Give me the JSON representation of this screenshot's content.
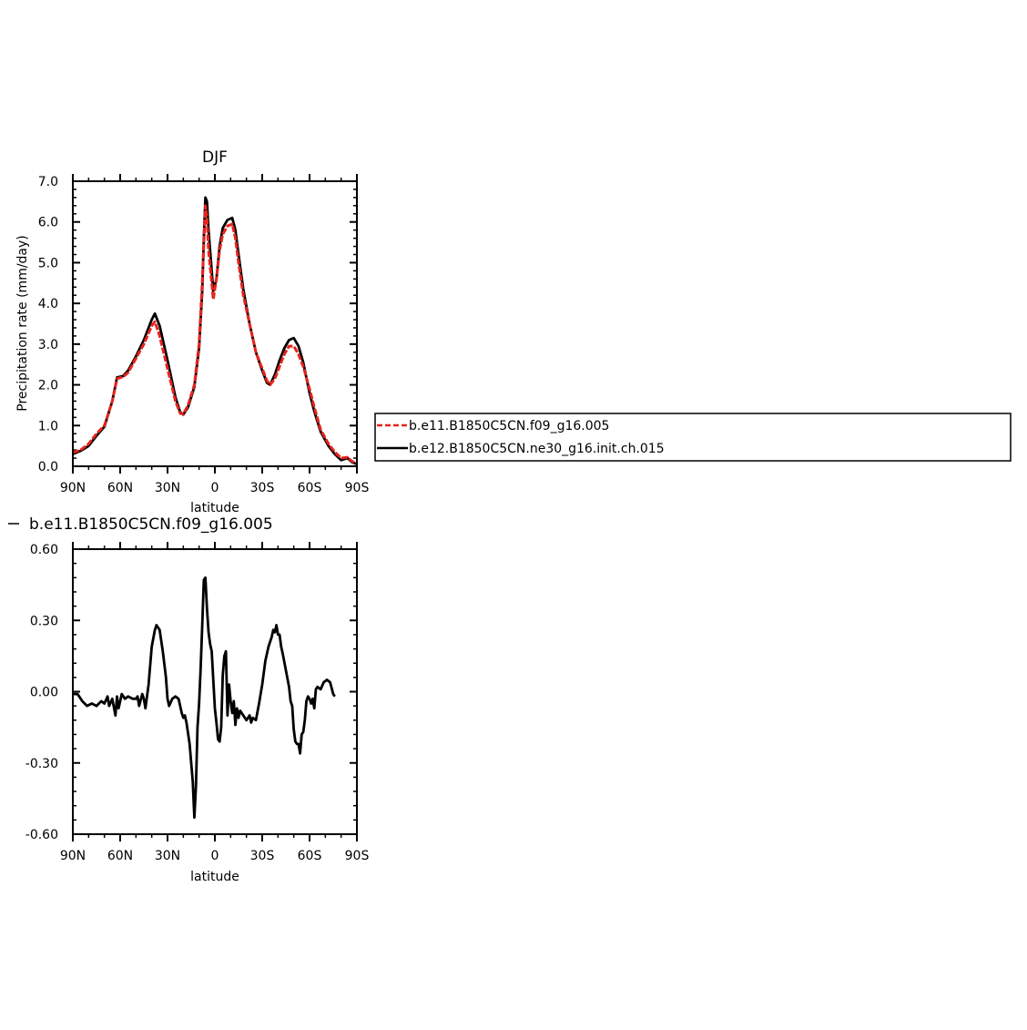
{
  "chart_data": [
    {
      "type": "line",
      "title": "DJF",
      "xlabel": "latitude",
      "ylabel": "Precipitation rate (mm/day)",
      "xlim": [
        90,
        -90
      ],
      "ylim": [
        0,
        7
      ],
      "x_ticks": [
        90,
        60,
        30,
        0,
        -30,
        -60,
        -90
      ],
      "x_tick_labels": [
        "90N",
        "60N",
        "30N",
        "0",
        "30S",
        "60S",
        "90S"
      ],
      "y_ticks": [
        0,
        1,
        2,
        3,
        4,
        5,
        6,
        7
      ],
      "y_tick_labels": [
        "0.0",
        "1.0",
        "2.0",
        "3.0",
        "4.0",
        "5.0",
        "6.0",
        "7.0"
      ],
      "grid": false,
      "legend": "right",
      "series": [
        {
          "name": "b.e11.B1850C5CN.f09_g16.005",
          "color": "#e8231c",
          "dash": true,
          "points": [
            [
              90,
              0.34
            ],
            [
              85,
              0.4
            ],
            [
              80,
              0.55
            ],
            [
              75,
              0.8
            ],
            [
              70,
              1.0
            ],
            [
              65,
              1.6
            ],
            [
              62,
              2.15
            ],
            [
              58,
              2.2
            ],
            [
              55,
              2.3
            ],
            [
              50,
              2.65
            ],
            [
              45,
              3.0
            ],
            [
              40,
              3.45
            ],
            [
              38,
              3.55
            ],
            [
              35,
              3.2
            ],
            [
              30,
              2.4
            ],
            [
              25,
              1.6
            ],
            [
              22,
              1.3
            ],
            [
              20,
              1.28
            ],
            [
              17,
              1.5
            ],
            [
              13,
              2.0
            ],
            [
              10,
              3.0
            ],
            [
              8,
              4.5
            ],
            [
              6,
              6.4
            ],
            [
              5,
              6.1
            ],
            [
              4,
              5.3
            ],
            [
              2,
              4.5
            ],
            [
              1,
              4.1
            ],
            [
              -1,
              4.6
            ],
            [
              -3,
              5.3
            ],
            [
              -5,
              5.7
            ],
            [
              -8,
              5.9
            ],
            [
              -11,
              5.95
            ],
            [
              -13,
              5.6
            ],
            [
              -15,
              5.0
            ],
            [
              -18,
              4.2
            ],
            [
              -22,
              3.5
            ],
            [
              -26,
              2.8
            ],
            [
              -30,
              2.4
            ],
            [
              -33,
              2.1
            ],
            [
              -35,
              2.0
            ],
            [
              -38,
              2.15
            ],
            [
              -41,
              2.45
            ],
            [
              -44,
              2.75
            ],
            [
              -47,
              2.95
            ],
            [
              -50,
              2.95
            ],
            [
              -53,
              2.75
            ],
            [
              -56,
              2.45
            ],
            [
              -60,
              1.9
            ],
            [
              -63,
              1.45
            ],
            [
              -67,
              0.9
            ],
            [
              -72,
              0.55
            ],
            [
              -76,
              0.35
            ],
            [
              -80,
              0.2
            ],
            [
              -84,
              0.22
            ],
            [
              -87,
              0.12
            ],
            [
              -90,
              0.06
            ]
          ]
        },
        {
          "name": "b.e12.B1850C5CN.ne30_g16.init.ch.015",
          "color": "#000000",
          "dash": false,
          "points": [
            [
              90,
              0.3
            ],
            [
              85,
              0.38
            ],
            [
              80,
              0.5
            ],
            [
              75,
              0.75
            ],
            [
              70,
              0.97
            ],
            [
              65,
              1.6
            ],
            [
              62,
              2.18
            ],
            [
              58,
              2.22
            ],
            [
              55,
              2.35
            ],
            [
              50,
              2.7
            ],
            [
              45,
              3.1
            ],
            [
              40,
              3.6
            ],
            [
              38,
              3.75
            ],
            [
              35,
              3.45
            ],
            [
              30,
              2.6
            ],
            [
              25,
              1.7
            ],
            [
              22,
              1.33
            ],
            [
              20,
              1.27
            ],
            [
              17,
              1.45
            ],
            [
              13,
              1.95
            ],
            [
              10,
              2.9
            ],
            [
              8,
              4.3
            ],
            [
              7,
              5.6
            ],
            [
              6,
              6.6
            ],
            [
              5,
              6.5
            ],
            [
              4,
              5.8
            ],
            [
              2,
              4.8
            ],
            [
              1,
              4.3
            ],
            [
              -1,
              4.6
            ],
            [
              -3,
              5.4
            ],
            [
              -5,
              5.85
            ],
            [
              -8,
              6.05
            ],
            [
              -11,
              6.1
            ],
            [
              -13,
              5.8
            ],
            [
              -15,
              5.2
            ],
            [
              -18,
              4.35
            ],
            [
              -22,
              3.5
            ],
            [
              -26,
              2.8
            ],
            [
              -30,
              2.35
            ],
            [
              -33,
              2.05
            ],
            [
              -35,
              2.0
            ],
            [
              -38,
              2.25
            ],
            [
              -41,
              2.6
            ],
            [
              -44,
              2.9
            ],
            [
              -47,
              3.1
            ],
            [
              -50,
              3.15
            ],
            [
              -53,
              2.95
            ],
            [
              -56,
              2.55
            ],
            [
              -60,
              1.8
            ],
            [
              -63,
              1.35
            ],
            [
              -67,
              0.85
            ],
            [
              -72,
              0.5
            ],
            [
              -76,
              0.3
            ],
            [
              -80,
              0.15
            ],
            [
              -84,
              0.2
            ],
            [
              -87,
              0.1
            ],
            [
              -90,
              0.05
            ]
          ]
        }
      ]
    },
    {
      "type": "line",
      "title": "b.e11.B1850C5CN.f09_g16.005",
      "xlabel": "latitude",
      "ylabel": "Precipitation rate (mm/day)",
      "xlim": [
        90,
        -90
      ],
      "ylim": [
        -0.6,
        0.6
      ],
      "x_ticks": [
        90,
        60,
        30,
        0,
        -30,
        -60,
        -90
      ],
      "x_tick_labels": [
        "90N",
        "60N",
        "30N",
        "0",
        "30S",
        "60S",
        "90S"
      ],
      "y_ticks": [
        -0.6,
        -0.3,
        0.0,
        0.3,
        0.6
      ],
      "y_tick_labels": [
        "-0.60",
        "-0.30",
        "0.00",
        "0.30",
        "0.60"
      ],
      "grid": false,
      "series": [
        {
          "color": "#000000",
          "dash": false,
          "points": [
            [
              90,
              -0.01
            ],
            [
              87,
              -0.01
            ],
            [
              84,
              -0.04
            ],
            [
              81,
              -0.06
            ],
            [
              78,
              -0.05
            ],
            [
              75,
              -0.06
            ],
            [
              72,
              -0.04
            ],
            [
              70,
              -0.05
            ],
            [
              68,
              -0.02
            ],
            [
              67,
              -0.06
            ],
            [
              65,
              -0.03
            ],
            [
              63,
              -0.1
            ],
            [
              62,
              -0.02
            ],
            [
              61,
              -0.07
            ],
            [
              59,
              -0.01
            ],
            [
              57,
              -0.03
            ],
            [
              55,
              -0.02
            ],
            [
              52,
              -0.03
            ],
            [
              50,
              -0.03
            ],
            [
              49,
              -0.02
            ],
            [
              48,
              -0.06
            ],
            [
              46,
              -0.01
            ],
            [
              45,
              -0.03
            ],
            [
              44,
              -0.07
            ],
            [
              42,
              0.03
            ],
            [
              40,
              0.19
            ],
            [
              38,
              0.26
            ],
            [
              37,
              0.28
            ],
            [
              35,
              0.26
            ],
            [
              33,
              0.17
            ],
            [
              31,
              0.06
            ],
            [
              30,
              -0.03
            ],
            [
              29,
              -0.06
            ],
            [
              27,
              -0.03
            ],
            [
              25,
              -0.02
            ],
            [
              23,
              -0.03
            ],
            [
              21,
              -0.09
            ],
            [
              20,
              -0.11
            ],
            [
              19,
              -0.1
            ],
            [
              18,
              -0.13
            ],
            [
              16,
              -0.22
            ],
            [
              14,
              -0.38
            ],
            [
              13,
              -0.53
            ],
            [
              12,
              -0.4
            ],
            [
              11,
              -0.15
            ],
            [
              10,
              -0.05
            ],
            [
              9,
              0.1
            ],
            [
              8,
              0.28
            ],
            [
              7,
              0.47
            ],
            [
              6,
              0.48
            ],
            [
              5,
              0.35
            ],
            [
              4,
              0.25
            ],
            [
              3,
              0.2
            ],
            [
              2,
              0.17
            ],
            [
              1,
              0.05
            ],
            [
              0,
              -0.07
            ],
            [
              -1,
              -0.13
            ],
            [
              -2,
              -0.2
            ],
            [
              -3,
              -0.21
            ],
            [
              -4,
              -0.15
            ],
            [
              -5,
              0.07
            ],
            [
              -6,
              0.15
            ],
            [
              -7,
              0.17
            ],
            [
              -8,
              -0.1
            ],
            [
              -9,
              0.03
            ],
            [
              -10,
              -0.04
            ],
            [
              -11,
              -0.09
            ],
            [
              -12,
              -0.04
            ],
            [
              -13,
              -0.14
            ],
            [
              -14,
              -0.07
            ],
            [
              -15,
              -0.11
            ],
            [
              -16,
              -0.08
            ],
            [
              -18,
              -0.1
            ],
            [
              -20,
              -0.12
            ],
            [
              -22,
              -0.1
            ],
            [
              -23,
              -0.13
            ],
            [
              -24,
              -0.11
            ],
            [
              -26,
              -0.12
            ],
            [
              -28,
              -0.05
            ],
            [
              -30,
              0.03
            ],
            [
              -32,
              0.13
            ],
            [
              -34,
              0.19
            ],
            [
              -36,
              0.23
            ],
            [
              -37,
              0.26
            ],
            [
              -38,
              0.25
            ],
            [
              -39,
              0.28
            ],
            [
              -40,
              0.24
            ],
            [
              -41,
              0.24
            ],
            [
              -42,
              0.19
            ],
            [
              -43,
              0.16
            ],
            [
              -45,
              0.09
            ],
            [
              -47,
              0.02
            ],
            [
              -48,
              -0.04
            ],
            [
              -49,
              -0.06
            ],
            [
              -50,
              -0.16
            ],
            [
              -51,
              -0.21
            ],
            [
              -52,
              -0.22
            ],
            [
              -53,
              -0.22
            ],
            [
              -54,
              -0.26
            ],
            [
              -55,
              -0.18
            ],
            [
              -56,
              -0.17
            ],
            [
              -57,
              -0.12
            ],
            [
              -58,
              -0.04
            ],
            [
              -59,
              -0.02
            ],
            [
              -60,
              -0.03
            ],
            [
              -61,
              -0.05
            ],
            [
              -62,
              -0.03
            ],
            [
              -63,
              -0.07
            ],
            [
              -64,
              0.01
            ],
            [
              -65,
              0.02
            ],
            [
              -67,
              0.01
            ],
            [
              -69,
              0.04
            ],
            [
              -71,
              0.05
            ],
            [
              -73,
              0.04
            ],
            [
              -75,
              -0.01
            ],
            [
              -76,
              -0.02
            ]
          ]
        }
      ]
    }
  ]
}
